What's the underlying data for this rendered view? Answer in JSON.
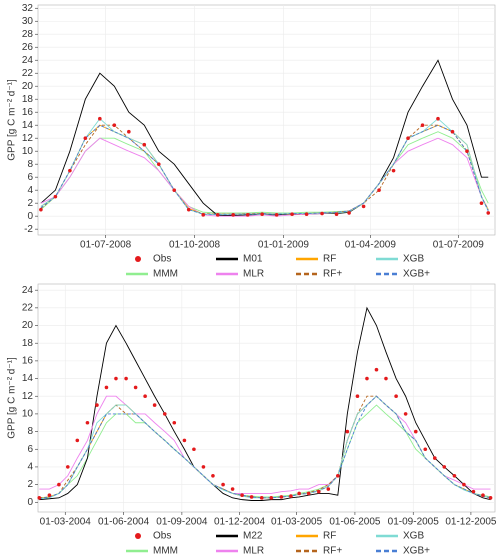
{
  "chart_data": [
    {
      "type": "line",
      "ylabel": "GPP [g C m⁻² d⁻¹]",
      "x": [
        "2008-04-25",
        "2008-05-10",
        "2008-05-25",
        "2008-06-10",
        "2008-06-25",
        "2008-07-10",
        "2008-07-25",
        "2008-08-10",
        "2008-08-25",
        "2008-09-10",
        "2008-09-25",
        "2008-10-10",
        "2008-10-25",
        "2008-11-10",
        "2008-11-25",
        "2008-12-10",
        "2008-12-25",
        "2009-01-10",
        "2009-01-25",
        "2009-02-10",
        "2009-02-25",
        "2009-03-10",
        "2009-03-25",
        "2009-04-10",
        "2009-04-25",
        "2009-05-10",
        "2009-05-25",
        "2009-06-10",
        "2009-06-25",
        "2009-07-10",
        "2009-07-25",
        "2009-08-01"
      ],
      "xlim": [
        "2008-04-22",
        "2009-08-08"
      ],
      "xticks": [
        {
          "value": "2008-07-01",
          "label": "01-07-2008"
        },
        {
          "value": "2008-10-01",
          "label": "01-10-2008"
        },
        {
          "value": "2009-01-01",
          "label": "01-01-2009"
        },
        {
          "value": "2009-04-01",
          "label": "01-04-2009"
        },
        {
          "value": "2009-07-01",
          "label": "01-07-2009"
        }
      ],
      "ylim": [
        -2.9,
        32.5
      ],
      "yticks": [
        -2,
        0,
        2,
        4,
        6,
        8,
        10,
        12,
        14,
        16,
        18,
        20,
        22,
        24,
        26,
        28,
        30,
        32
      ],
      "grid": true,
      "series": [
        {
          "name": "Obs",
          "color": "#e41a1c",
          "style": "points",
          "values": [
            1,
            3,
            7,
            12,
            15,
            14,
            13,
            11,
            8,
            4,
            1,
            0.2,
            0.2,
            0.2,
            0.2,
            0.3,
            0.2,
            0.3,
            0.3,
            0.4,
            0.3,
            0.5,
            1.5,
            4,
            7,
            12,
            14,
            15,
            13,
            10,
            2,
            0.5
          ]
        },
        {
          "name": "MMM",
          "color": "#90ee90",
          "style": "solid",
          "values": [
            1,
            3,
            6,
            10,
            12,
            12,
            11,
            10,
            7,
            4,
            1.5,
            0.6,
            0.5,
            0.5,
            0.5,
            0.6,
            0.5,
            0.5,
            0.6,
            0.6,
            0.7,
            0.8,
            2,
            5,
            8,
            11,
            12,
            13,
            12,
            10,
            4,
            2
          ]
        },
        {
          "name": "M01",
          "color": "#000000",
          "style": "solid",
          "values": [
            2,
            4,
            10,
            18,
            22,
            20,
            16,
            14,
            10,
            8,
            5,
            2,
            0.1,
            0.1,
            0.2,
            0.2,
            0.2,
            0.3,
            0.3,
            0.4,
            0.4,
            0.6,
            2,
            5,
            9,
            16,
            20,
            24,
            18,
            14,
            6,
            6
          ]
        },
        {
          "name": "MLR",
          "color": "#ee82ee",
          "style": "solid",
          "values": [
            2,
            3,
            6,
            10,
            12,
            11,
            10,
            9,
            7,
            4,
            1.5,
            0.2,
            0,
            0,
            0,
            0.2,
            0,
            0.2,
            0.3,
            0.4,
            0.5,
            0.8,
            2,
            5,
            8,
            10,
            11,
            12,
            11,
            9,
            3,
            1
          ]
        },
        {
          "name": "RF",
          "color": "#ffa500",
          "style": "solid",
          "values": [
            1.5,
            3,
            7,
            12,
            14,
            13,
            12,
            11,
            8,
            4,
            1.2,
            0.3,
            0.3,
            0.3,
            0.3,
            0.4,
            0.3,
            0.4,
            0.4,
            0.5,
            0.5,
            0.7,
            2,
            5,
            8,
            12,
            13,
            14,
            13,
            11,
            3,
            1
          ]
        },
        {
          "name": "RF+",
          "color": "#b5651d",
          "style": "dashed",
          "values": [
            1.2,
            3,
            7,
            11,
            14,
            14,
            12,
            10,
            8,
            4,
            1,
            0.4,
            0.3,
            0.3,
            0.4,
            0.4,
            0.3,
            0.3,
            0.4,
            0.5,
            0.6,
            0.8,
            2,
            4,
            8,
            12,
            14,
            14,
            13,
            10,
            3,
            1
          ]
        },
        {
          "name": "XGB",
          "color": "#7fdbd4",
          "style": "solid",
          "values": [
            1.5,
            3,
            7,
            12,
            15,
            13,
            12,
            11,
            8,
            4,
            1,
            0.3,
            0.2,
            0.3,
            0.3,
            0.3,
            0.3,
            0.4,
            0.4,
            0.5,
            0.5,
            0.7,
            2,
            5,
            8,
            12,
            13,
            15,
            13,
            11,
            3,
            0.8
          ]
        },
        {
          "name": "XGB+",
          "color": "#4a7fd4",
          "style": "dashed",
          "values": [
            1.3,
            3,
            7,
            12,
            14,
            13,
            12,
            10,
            8,
            4,
            1,
            0.3,
            0.3,
            0.3,
            0.3,
            0.4,
            0.3,
            0.4,
            0.4,
            0.5,
            0.6,
            0.8,
            2,
            5,
            8,
            12,
            13,
            14,
            13,
            10,
            3,
            0.8
          ]
        }
      ]
    },
    {
      "type": "line",
      "ylabel": "GPP [g C m⁻² d⁻¹]",
      "x": [
        "2004-01-20",
        "2004-02-05",
        "2004-02-20",
        "2004-03-05",
        "2004-03-20",
        "2004-04-05",
        "2004-04-20",
        "2004-05-05",
        "2004-05-20",
        "2004-06-05",
        "2004-06-20",
        "2004-07-05",
        "2004-07-20",
        "2004-08-05",
        "2004-08-20",
        "2004-09-05",
        "2004-09-20",
        "2004-10-05",
        "2004-10-20",
        "2004-11-05",
        "2004-11-20",
        "2004-12-05",
        "2004-12-20",
        "2005-01-05",
        "2005-01-20",
        "2005-02-05",
        "2005-02-20",
        "2005-03-05",
        "2005-03-20",
        "2005-04-05",
        "2005-04-20",
        "2005-05-05",
        "2005-05-20",
        "2005-06-05",
        "2005-06-20",
        "2005-07-05",
        "2005-07-20",
        "2005-08-05",
        "2005-08-20",
        "2005-09-05",
        "2005-09-20",
        "2005-10-05",
        "2005-10-20",
        "2005-11-05",
        "2005-11-20",
        "2005-12-05",
        "2005-12-20",
        "2006-01-01"
      ],
      "xlim": [
        "2004-01-18",
        "2006-01-08"
      ],
      "xticks": [
        {
          "value": "2004-03-01",
          "label": "01-03-2004"
        },
        {
          "value": "2004-06-01",
          "label": "01-06-2004"
        },
        {
          "value": "2004-09-01",
          "label": "01-09-2004"
        },
        {
          "value": "2004-12-01",
          "label": "01-12-2004"
        },
        {
          "value": "2005-03-01",
          "label": "01-03-2005"
        },
        {
          "value": "2005-06-01",
          "label": "01-06-2005"
        },
        {
          "value": "2005-09-01",
          "label": "01-09-2005"
        },
        {
          "value": "2005-12-01",
          "label": "01-12-2005"
        }
      ],
      "ylim": [
        -1.1,
        24.7
      ],
      "yticks": [
        0,
        2,
        4,
        6,
        8,
        10,
        12,
        14,
        16,
        18,
        20,
        22,
        24
      ],
      "grid": true,
      "series": [
        {
          "name": "Obs",
          "color": "#e41a1c",
          "style": "points",
          "values": [
            0.5,
            0.8,
            2,
            4,
            7,
            9,
            11,
            13,
            14,
            14,
            13,
            12,
            11,
            10,
            9,
            7,
            6,
            4,
            3,
            2,
            1.5,
            0.8,
            0.6,
            0.5,
            0.5,
            0.6,
            0.7,
            1,
            1,
            1.2,
            1.5,
            3,
            8,
            12,
            14,
            15,
            14,
            12,
            10,
            8,
            6,
            5,
            4,
            3,
            2,
            1.2,
            0.8,
            0.5
          ]
        },
        {
          "name": "MMM",
          "color": "#90ee90",
          "style": "solid",
          "values": [
            0.5,
            0.6,
            1,
            2,
            3,
            5,
            7,
            9,
            10,
            10,
            9,
            9,
            8,
            7,
            6,
            5,
            4,
            3,
            2,
            1.5,
            1,
            0.8,
            0.7,
            0.6,
            0.6,
            0.7,
            0.8,
            1,
            1.2,
            1.5,
            2,
            3,
            6,
            9,
            10,
            11,
            10,
            9,
            8,
            6,
            5,
            4,
            3,
            2,
            1.5,
            1,
            0.8,
            0.6
          ]
        },
        {
          "name": "M22",
          "color": "#000000",
          "style": "solid",
          "values": [
            0.3,
            0.4,
            0.5,
            1,
            2,
            5,
            12,
            18,
            20,
            18,
            16,
            14,
            12,
            10,
            8,
            6,
            4,
            3,
            2,
            1,
            0.5,
            0.3,
            0.2,
            0.2,
            0.3,
            0.3,
            0.5,
            0.6,
            0.8,
            1,
            1,
            0.8,
            10,
            17,
            22,
            20,
            17,
            14,
            12,
            9,
            7,
            5,
            4,
            3,
            2,
            1,
            0.5,
            0.3
          ]
        },
        {
          "name": "MLR",
          "color": "#ee82ee",
          "style": "solid",
          "values": [
            1.5,
            1.5,
            2,
            3,
            5,
            7,
            10,
            12,
            12,
            11,
            10,
            10,
            9,
            8,
            7,
            5,
            4,
            3,
            2,
            1.5,
            1,
            1,
            1,
            1,
            1,
            1.2,
            1.3,
            1.5,
            1.5,
            2,
            2,
            3,
            7,
            10,
            11,
            12,
            11,
            10,
            9,
            7,
            5,
            4,
            3,
            2.5,
            2,
            1.5,
            1.5,
            1.5
          ]
        },
        {
          "name": "RF",
          "color": "#ffa500",
          "style": "solid",
          "values": [
            0.4,
            0.6,
            1,
            2,
            4,
            6,
            8,
            10,
            11,
            11,
            10,
            9,
            8,
            7,
            6,
            5,
            4,
            3,
            2,
            1.5,
            1,
            0.7,
            0.6,
            0.5,
            0.5,
            0.6,
            0.7,
            0.9,
            1,
            1.3,
            1.8,
            3,
            7,
            10,
            11,
            12,
            11,
            10,
            8,
            7,
            5,
            4,
            3,
            2,
            1.5,
            1,
            0.7,
            0.5
          ]
        },
        {
          "name": "RF+",
          "color": "#b5651d",
          "style": "dashed",
          "values": [
            0.5,
            0.6,
            1,
            2.5,
            4,
            6,
            8,
            10,
            11,
            10,
            10,
            9,
            8,
            7,
            6,
            5,
            4,
            3,
            2,
            1.5,
            1,
            0.8,
            0.6,
            0.5,
            0.5,
            0.6,
            0.7,
            0.9,
            1.1,
            1.4,
            2,
            3,
            7,
            10,
            12,
            12,
            11,
            10,
            8,
            7,
            5,
            4,
            3,
            2,
            1.5,
            1,
            0.7,
            0.5
          ]
        },
        {
          "name": "XGB",
          "color": "#7fdbd4",
          "style": "solid",
          "values": [
            0.4,
            0.5,
            1,
            2,
            4,
            6,
            9,
            10,
            11,
            11,
            10,
            9,
            8,
            7,
            6,
            5,
            4,
            3,
            2,
            1.4,
            1,
            0.7,
            0.5,
            0.5,
            0.5,
            0.6,
            0.7,
            0.9,
            1,
            1.3,
            1.8,
            3,
            7,
            10,
            11,
            12,
            11,
            10,
            8,
            7,
            5,
            4,
            3,
            2,
            1.4,
            1,
            0.7,
            0.5
          ]
        },
        {
          "name": "XGB+",
          "color": "#4a7fd4",
          "style": "dashed",
          "values": [
            0.4,
            0.6,
            1,
            2,
            4,
            6,
            8,
            10,
            10,
            10,
            10,
            9,
            8,
            7,
            6,
            5,
            4,
            3,
            2,
            1.5,
            1,
            0.8,
            0.6,
            0.5,
            0.5,
            0.6,
            0.7,
            0.9,
            1,
            1.3,
            1.8,
            3,
            6,
            9,
            11,
            12,
            11,
            10,
            8,
            7,
            5,
            4,
            3,
            2,
            1.5,
            1,
            0.7,
            0.5
          ]
        }
      ]
    }
  ]
}
